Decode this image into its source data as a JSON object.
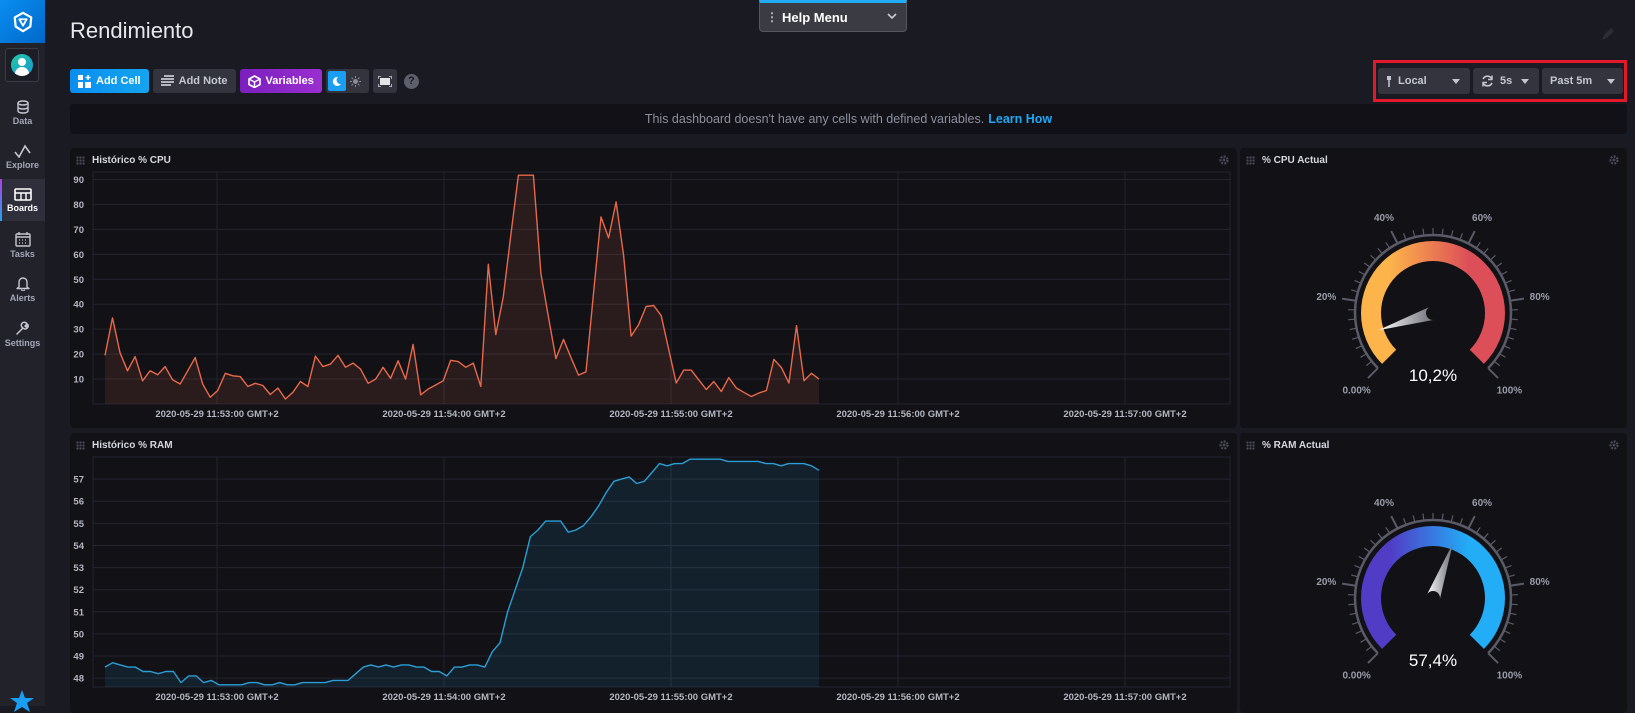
{
  "sidebar": {
    "items": [
      {
        "label": "Data",
        "icon": "database-icon"
      },
      {
        "label": "Explore",
        "icon": "explore-graph-icon"
      },
      {
        "label": "Boards",
        "icon": "dashboard-grid-icon",
        "active": true
      },
      {
        "label": "Tasks",
        "icon": "calendar-icon"
      },
      {
        "label": "Alerts",
        "icon": "bell-icon"
      },
      {
        "label": "Settings",
        "icon": "wrench-icon"
      }
    ]
  },
  "header": {
    "title": "Rendimiento",
    "help_menu": "Help Menu"
  },
  "toolbar": {
    "add_cell": "Add Cell",
    "add_note": "Add Note",
    "variables": "Variables",
    "help": "?"
  },
  "controls": {
    "timezone": "Local",
    "refresh": "5s",
    "range": "Past 5m",
    "highlight_color": "#e3192b"
  },
  "banner": {
    "text": "This dashboard doesn't have any cells with defined variables.",
    "link": "Learn How"
  },
  "cells": {
    "cpu_history": {
      "title": "Histórico % CPU"
    },
    "cpu_current": {
      "title": "% CPU Actual"
    },
    "ram_history": {
      "title": "Histórico % RAM"
    },
    "ram_current": {
      "title": "% RAM Actual"
    }
  },
  "colors": {
    "accent": "#1a9ef3",
    "cpu_line": "#e8694a",
    "ram_line": "#2a9fd6",
    "cpu_gauge_start": "#fdb44a",
    "cpu_gauge_end": "#dc4e58",
    "ram_gauge_start": "#513cc6",
    "ram_gauge_end": "#22adf6"
  },
  "chart_data": [
    {
      "type": "line",
      "title": "Histórico % CPU",
      "xlabel": "",
      "ylabel": "",
      "x_ticks": [
        "2020-05-29 11:53:00 GMT+2",
        "2020-05-29 11:54:00 GMT+2",
        "2020-05-29 11:55:00 GMT+2",
        "2020-05-29 11:56:00 GMT+2",
        "2020-05-29 11:57:00 GMT+2"
      ],
      "y_ticks": [
        10,
        20,
        30,
        40,
        50,
        60,
        70,
        80,
        90
      ],
      "ylim": [
        0,
        93
      ],
      "grid": true,
      "series": [
        {
          "name": "cpu",
          "values": [
            19.5,
            34.5,
            20.6,
            13.3,
            19,
            9.3,
            13.3,
            11.7,
            15,
            9.7,
            8,
            13.3,
            18.6,
            8,
            2.7,
            5.4,
            12.3,
            11.3,
            11,
            7,
            8.3,
            7.4,
            3.8,
            6.4,
            2,
            4.7,
            9,
            7,
            19.2,
            15,
            16,
            19.5,
            14.7,
            16.4,
            14,
            8.3,
            10,
            14.7,
            10.3,
            17.3,
            10,
            23.9,
            3.7,
            6,
            7.6,
            9.3,
            17.5,
            17,
            14.7,
            16.4,
            7,
            56,
            27.8,
            43,
            68,
            91.7,
            91.7,
            91.7,
            52.3,
            35,
            18.2,
            25.9,
            18.6,
            11.6,
            12.9,
            44.3,
            75,
            66.6,
            81,
            59.6,
            27.2,
            31.8,
            39.1,
            39.5,
            35.4,
            21.9,
            8.4,
            13.6,
            13.6,
            9.7,
            5.8,
            9,
            5,
            10.6,
            6.4,
            4.7,
            3,
            4.4,
            5.4,
            17.9,
            14.6,
            8.4,
            31.4,
            9.3,
            12.3,
            10
          ]
        }
      ]
    },
    {
      "type": "gauge",
      "title": "% CPU Actual",
      "value": 10.2,
      "value_label": "10,2%",
      "tick_labels": [
        "0.00%",
        "20%",
        "40%",
        "60%",
        "80%",
        "100%"
      ],
      "range": [
        0,
        100
      ]
    },
    {
      "type": "line",
      "title": "Histórico % RAM",
      "xlabel": "",
      "ylabel": "",
      "x_ticks": [
        "2020-05-29 11:53:00 GMT+2",
        "2020-05-29 11:54:00 GMT+2",
        "2020-05-29 11:55:00 GMT+2",
        "2020-05-29 11:56:00 GMT+2",
        "2020-05-29 11:57:00 GMT+2"
      ],
      "y_ticks": [
        48,
        49,
        50,
        51,
        52,
        53,
        54,
        55,
        56,
        57
      ],
      "ylim": [
        47.6,
        58
      ],
      "grid": true,
      "series": [
        {
          "name": "ram",
          "values": [
            48.5,
            48.7,
            48.6,
            48.5,
            48.5,
            48.3,
            48.3,
            48.2,
            48.3,
            48.3,
            47.8,
            48.1,
            48.1,
            47.8,
            47.9,
            47.7,
            47.7,
            47.7,
            47.7,
            47.8,
            47.8,
            47.7,
            47.7,
            47.8,
            47.7,
            47.7,
            47.8,
            47.8,
            47.8,
            47.8,
            47.9,
            47.9,
            47.9,
            48.2,
            48.5,
            48.6,
            48.5,
            48.6,
            48.5,
            48.6,
            48.6,
            48.5,
            48.5,
            48.3,
            48.3,
            48.1,
            48.5,
            48.5,
            48.6,
            48.6,
            48.5,
            49.2,
            49.6,
            51,
            52,
            53,
            54.4,
            54.7,
            55.1,
            55.1,
            55.1,
            54.6,
            54.7,
            54.9,
            55.3,
            55.8,
            56.4,
            56.9,
            57,
            57.1,
            56.8,
            56.9,
            57.3,
            57.7,
            57.6,
            57.7,
            57.7,
            57.9,
            57.9,
            57.9,
            57.9,
            57.9,
            57.8,
            57.8,
            57.8,
            57.8,
            57.8,
            57.7,
            57.7,
            57.6,
            57.7,
            57.7,
            57.7,
            57.6,
            57.4
          ]
        }
      ]
    },
    {
      "type": "gauge",
      "title": "% RAM Actual",
      "value": 57.4,
      "value_label": "57,4%",
      "tick_labels": [
        "0.00%",
        "20%",
        "40%",
        "60%",
        "80%",
        "100%"
      ],
      "range": [
        0,
        100
      ]
    }
  ]
}
